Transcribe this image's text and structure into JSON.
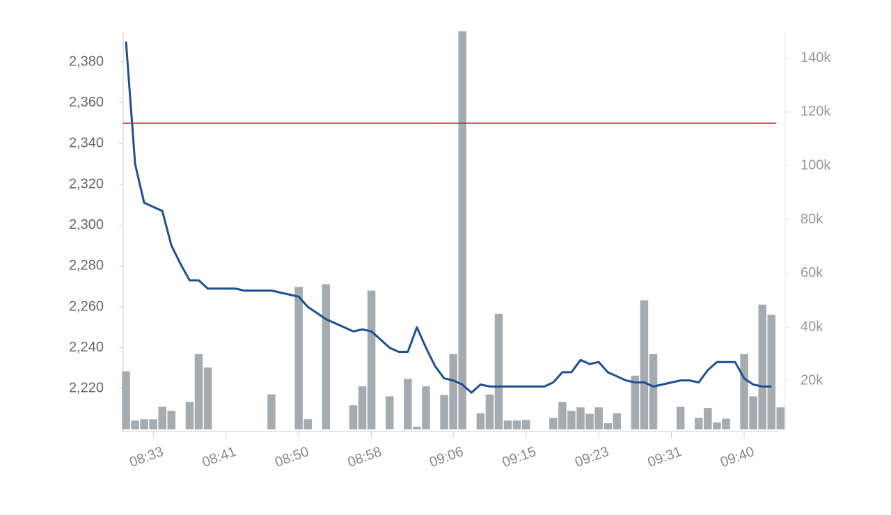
{
  "chart_data": {
    "type": "combo",
    "categories": [
      null,
      null,
      null,
      "08:33",
      null,
      null,
      null,
      null,
      null,
      null,
      null,
      "08:41",
      null,
      null,
      null,
      null,
      null,
      null,
      null,
      "08:50",
      null,
      null,
      null,
      null,
      null,
      null,
      null,
      "08:58",
      null,
      null,
      null,
      null,
      null,
      null,
      null,
      null,
      "09:06",
      null,
      null,
      null,
      null,
      null,
      null,
      null,
      "09:15",
      null,
      null,
      null,
      null,
      null,
      null,
      null,
      "09:23",
      null,
      null,
      null,
      null,
      null,
      null,
      null,
      "09:31",
      null,
      null,
      null,
      null,
      null,
      null,
      null,
      "09:40",
      null,
      null,
      null,
      null
    ],
    "series": [
      {
        "type": "line",
        "color": "#1f4e96",
        "values": [
          2390,
          2330,
          2311,
          2309,
          2307,
          2290,
          2281,
          2273,
          2273,
          2269,
          2269,
          2269,
          2269,
          2268,
          2268,
          2268,
          2268,
          2267,
          2266,
          2265,
          2260,
          2257,
          2254,
          2252,
          2250,
          2248,
          2249,
          2248,
          2244,
          2240,
          2238,
          2238,
          2250,
          2240,
          2231,
          2225,
          2224,
          2222,
          2218,
          2222,
          2221,
          2221,
          2221,
          2221,
          2221,
          2221,
          2221,
          2223,
          2228,
          2228,
          2234,
          2232,
          2233,
          2228,
          2226,
          2224,
          2223,
          2223,
          2221,
          2222,
          2223,
          2224,
          2224,
          2223,
          2229,
          2233,
          2233,
          2233,
          2225,
          2222,
          2221,
          2221,
          null
        ]
      },
      {
        "type": "bar",
        "axis": "y2",
        "color": "#a5abaf",
        "values": [
          23600,
          5300,
          5800,
          5800,
          10400,
          8900,
          null,
          12200,
          30000,
          25000,
          null,
          null,
          null,
          null,
          null,
          null,
          15000,
          null,
          null,
          55000,
          5800,
          null,
          56000,
          null,
          null,
          11000,
          18000,
          53600,
          null,
          14300,
          null,
          20800,
          3000,
          18000,
          null,
          14800,
          30000,
          150000,
          null,
          8000,
          15000,
          45000,
          5300,
          5300,
          5500,
          null,
          null,
          6300,
          12200,
          8900,
          10200,
          7800,
          10200,
          4300,
          8000,
          null,
          22000,
          50000,
          30000,
          null,
          null,
          10400,
          null,
          6300,
          10000,
          4600,
          6000,
          null,
          30000,
          14300,
          48400,
          44600,
          10200
        ]
      }
    ],
    "reference_lines": [
      {
        "value": 2350,
        "color": "#d0201f"
      }
    ],
    "ylim": [
      2200,
      2395
    ],
    "yticks": [
      {
        "value": 2220,
        "label": "2,220"
      },
      {
        "value": 2240,
        "label": "2,240"
      },
      {
        "value": 2260,
        "label": "2,260"
      },
      {
        "value": 2280,
        "label": "2,280"
      },
      {
        "value": 2300,
        "label": "2,300"
      },
      {
        "value": 2320,
        "label": "2,320"
      },
      {
        "value": 2340,
        "label": "2,340"
      },
      {
        "value": 2360,
        "label": "2,360"
      },
      {
        "value": 2380,
        "label": "2,380"
      }
    ],
    "y2lim": [
      2000,
      150000
    ],
    "y2ticks": [
      {
        "value": 20000,
        "label": "20k"
      },
      {
        "value": 40000,
        "label": "40k"
      },
      {
        "value": 60000,
        "label": "60k"
      },
      {
        "value": 80000,
        "label": "80k"
      },
      {
        "value": 100000,
        "label": "100k"
      },
      {
        "value": 120000,
        "label": "120k"
      },
      {
        "value": 140000,
        "label": "140k"
      }
    ]
  }
}
